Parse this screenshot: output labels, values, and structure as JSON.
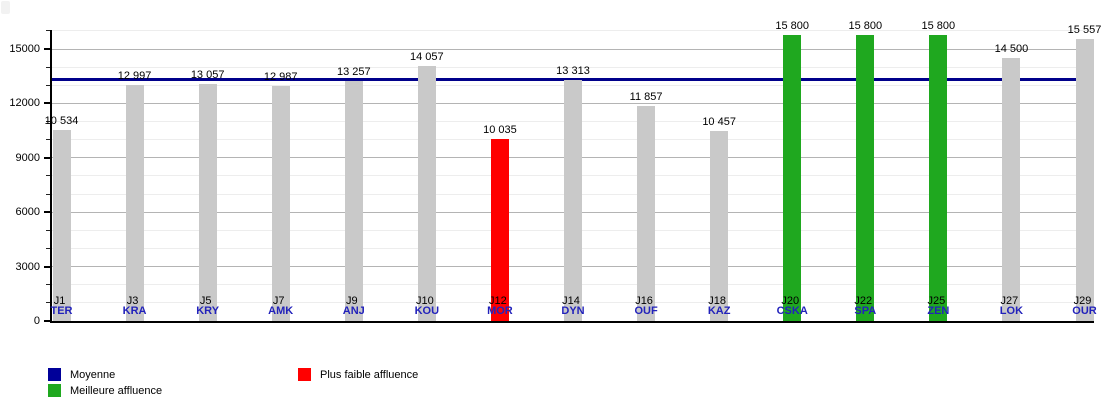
{
  "chart_data": {
    "type": "bar",
    "title": "",
    "xlabel": "",
    "ylabel": "",
    "categories": [
      "J1",
      "J3",
      "J5",
      "J7",
      "J9",
      "J10",
      "J12",
      "J14",
      "J16",
      "J18",
      "J20",
      "J22",
      "J25",
      "J27",
      "J29"
    ],
    "teams": [
      "TER",
      "KRA",
      "KRY",
      "AMK",
      "ANJ",
      "KOU",
      "MOR",
      "DYN",
      "OUF",
      "KAZ",
      "CSKA",
      "SPA",
      "ZEN",
      "LOK",
      "OUR"
    ],
    "values": [
      10534,
      12997,
      13057,
      12987,
      13257,
      14057,
      10035,
      13313,
      11857,
      10457,
      15800,
      15800,
      15800,
      14500,
      15557
    ],
    "value_labels": [
      "10 534",
      "12 997",
      "13 057",
      "12 987",
      "13 257",
      "14 057",
      "10 035",
      "13 313",
      "11 857",
      "10 457",
      "15 800",
      "15 800",
      "15 800",
      "14 500",
      "15 557"
    ],
    "highlight": [
      "none",
      "none",
      "none",
      "none",
      "none",
      "none",
      "min",
      "none",
      "none",
      "none",
      "max",
      "max",
      "max",
      "none",
      "none"
    ],
    "average_value": 13334,
    "ylim": [
      0,
      16050
    ],
    "yticks": [
      0,
      3000,
      6000,
      9000,
      12000,
      15000
    ],
    "ytick_labels": [
      "0",
      "3000",
      "6000",
      "9000",
      "12000",
      "15000"
    ],
    "minor_tick_step": 1000,
    "grid": "on",
    "legend_position": "bottom-left",
    "legend": [
      {
        "label": "Moyenne",
        "color": "#000099"
      },
      {
        "label": "Meilleure affluence",
        "color": "#1fa81f"
      },
      {
        "label": "Plus faible affluence",
        "color": "#ff0000"
      }
    ]
  },
  "colors": {
    "bar_default": "#c9c9c9",
    "bar_min": "#ff0000",
    "bar_max": "#1fa81f",
    "average_line": "#00008b",
    "team_label": "#2222bb",
    "grid_major": "#b4b4b4",
    "grid_minor": "#ededed",
    "axis": "#000000"
  }
}
